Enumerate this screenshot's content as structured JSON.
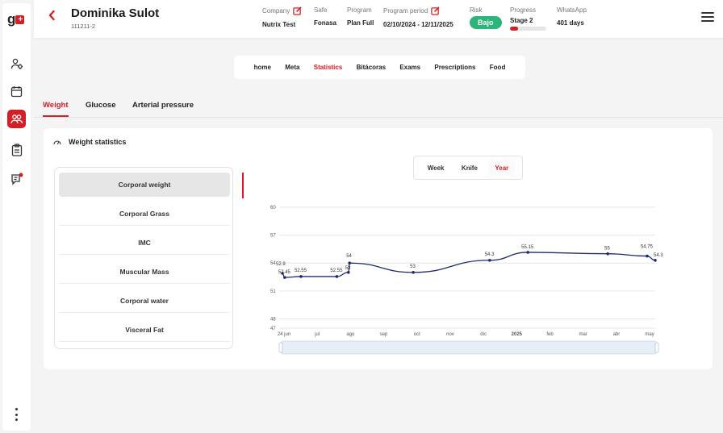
{
  "sidebar": {
    "logo_text": "g",
    "logo_mark": "+",
    "icons": [
      "settings-users-icon",
      "calendar-icon",
      "patients-icon",
      "clipboard-icon",
      "chat-icon"
    ],
    "more": "more-vertical-icon"
  },
  "header": {
    "back_icon": "chevron-left-icon",
    "patient_name": "Dominika Sulot",
    "patient_id": "111211-2",
    "company_label": "Company",
    "company_value": "Nutrix Test",
    "safe_label": "Safe",
    "safe_value": "Fonasa",
    "program_label": "Program",
    "program_value": "Plan Full",
    "period_label": "Program period",
    "period_value": "02/10/2024 - 12/11/2025",
    "risk_label": "Risk",
    "risk_value": "Bajo",
    "risk_color": "#2bb57a",
    "progress_label": "Progress",
    "progress_value": "Stage 2",
    "progress_fraction": 0.22,
    "whatsapp_label": "WhatsApp",
    "whatsapp_value": "401 days"
  },
  "nav": {
    "items": [
      "home",
      "Meta",
      "Statistics",
      "Bitácoras",
      "Exams",
      "Prescriptions",
      "Food"
    ],
    "active": "Statistics"
  },
  "subtabs": {
    "items": [
      "Weight",
      "Glucose",
      "Arterial pressure"
    ],
    "active": "Weight"
  },
  "card": {
    "title": "Weight statistics",
    "metrics": [
      "Corporal weight",
      "Corporal Grass",
      "IMC",
      "Muscular Mass",
      "Corporal water",
      "Visceral Fat"
    ],
    "active_metric": "Corporal weight",
    "range": [
      "Week",
      "Knife",
      "Year"
    ],
    "active_range": "Year"
  },
  "colors": {
    "accent": "#d51f26",
    "line": "#1f2a6b"
  },
  "chart_data": {
    "type": "line",
    "x_tick_labels": [
      "24 jun",
      "jul",
      "ago",
      "sep",
      "oct",
      "nov",
      "dic",
      "2025",
      "feb",
      "mar",
      "abr",
      "may"
    ],
    "y_ticks": [
      47,
      48,
      51,
      54,
      57,
      60
    ],
    "ylim": [
      47,
      60
    ],
    "grid": true,
    "series": [
      {
        "points": [
          {
            "x": "2024-06-24",
            "y": 52.9,
            "label": "52.9"
          },
          {
            "x": "2024-06-26",
            "y": 52.45,
            "label": "52.45"
          },
          {
            "x": "2024-07-10",
            "y": 52.55,
            "label": "52.55"
          },
          {
            "x": "2024-08-10",
            "y": 52.55,
            "label": "52.55"
          },
          {
            "x": "2024-08-20",
            "y": 53,
            "label": "53"
          },
          {
            "x": "2024-08-21",
            "y": 54,
            "label": "54"
          },
          {
            "x": "2024-10-15",
            "y": 53,
            "label": "53"
          },
          {
            "x": "2024-12-20",
            "y": 54.3,
            "label": "54.3"
          },
          {
            "x": "2025-01-22",
            "y": 55.15,
            "label": "55.15"
          },
          {
            "x": "2025-04-01",
            "y": 55,
            "label": "55"
          },
          {
            "x": "2025-05-05",
            "y": 54.75,
            "label": "54.75"
          },
          {
            "x": "2025-05-12",
            "y": 54.3,
            "label": "54.3"
          }
        ]
      }
    ]
  }
}
